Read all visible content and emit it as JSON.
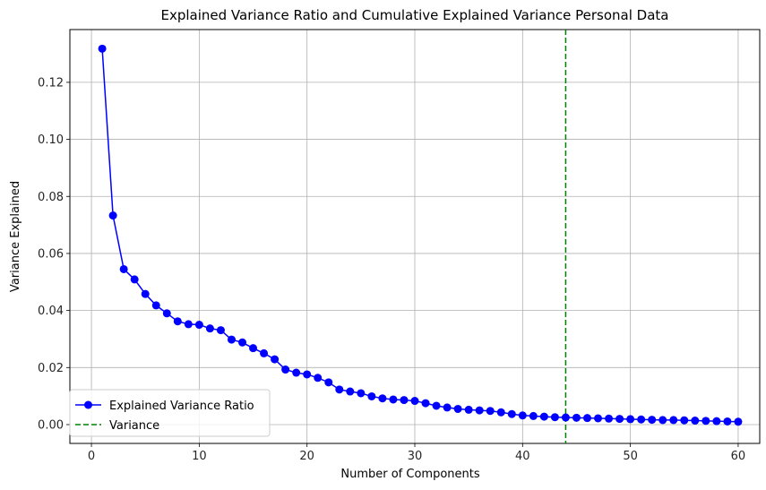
{
  "chart_data": {
    "type": "line",
    "title": "Explained Variance Ratio and Cumulative Explained Variance Personal Data",
    "xlabel": "Number of Components",
    "ylabel": "Variance Explained",
    "xlim": [
      -2,
      62
    ],
    "ylim": [
      -0.0066,
      0.1385
    ],
    "grid": true,
    "xticks": [
      0,
      10,
      20,
      30,
      40,
      50,
      60
    ],
    "xtick_labels": [
      "0",
      "10",
      "20",
      "30",
      "40",
      "50",
      "60"
    ],
    "yticks": [
      0.0,
      0.02,
      0.04,
      0.06,
      0.08,
      0.1,
      0.12
    ],
    "ytick_labels": [
      "0.00",
      "0.02",
      "0.04",
      "0.06",
      "0.08",
      "0.10",
      "0.12"
    ],
    "series": [
      {
        "name": "Explained Variance Ratio",
        "color": "#0000ff",
        "marker": "circle",
        "x": [
          1,
          2,
          3,
          4,
          5,
          6,
          7,
          8,
          9,
          10,
          11,
          12,
          13,
          14,
          15,
          16,
          17,
          18,
          19,
          20,
          21,
          22,
          23,
          24,
          25,
          26,
          27,
          28,
          29,
          30,
          31,
          32,
          33,
          34,
          35,
          36,
          37,
          38,
          39,
          40,
          41,
          42,
          43,
          44,
          45,
          46,
          47,
          48,
          49,
          50,
          51,
          52,
          53,
          54,
          55,
          56,
          57,
          58,
          59,
          60
        ],
        "values": [
          0.1318,
          0.0733,
          0.0545,
          0.0509,
          0.0458,
          0.0418,
          0.039,
          0.0362,
          0.0352,
          0.035,
          0.0337,
          0.0331,
          0.0298,
          0.0288,
          0.0268,
          0.025,
          0.0229,
          0.0193,
          0.0182,
          0.0176,
          0.0164,
          0.0148,
          0.0123,
          0.0116,
          0.011,
          0.0099,
          0.0092,
          0.0088,
          0.0086,
          0.0083,
          0.0075,
          0.0066,
          0.006,
          0.0055,
          0.0052,
          0.005,
          0.0048,
          0.0043,
          0.0037,
          0.0032,
          0.003,
          0.0028,
          0.0026,
          0.0025,
          0.0024,
          0.0023,
          0.0022,
          0.0021,
          0.002,
          0.0019,
          0.0018,
          0.0017,
          0.0016,
          0.0016,
          0.0015,
          0.0014,
          0.0013,
          0.0012,
          0.0011,
          0.001
        ]
      }
    ],
    "vline": {
      "name": "Variance",
      "x": 44,
      "color": "#008000",
      "style": "dashed"
    },
    "legend": {
      "placement": "lower-left",
      "entries": [
        "Explained Variance Ratio",
        "Variance"
      ]
    }
  }
}
